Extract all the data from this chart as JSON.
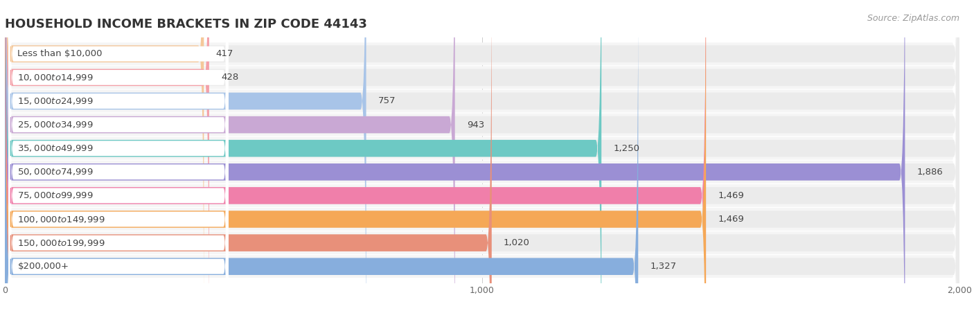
{
  "title": "HOUSEHOLD INCOME BRACKETS IN ZIP CODE 44143",
  "source": "Source: ZipAtlas.com",
  "categories": [
    "Less than $10,000",
    "$10,000 to $14,999",
    "$15,000 to $24,999",
    "$25,000 to $34,999",
    "$35,000 to $49,999",
    "$50,000 to $74,999",
    "$75,000 to $99,999",
    "$100,000 to $149,999",
    "$150,000 to $199,999",
    "$200,000+"
  ],
  "values": [
    417,
    428,
    757,
    943,
    1250,
    1886,
    1469,
    1469,
    1020,
    1327
  ],
  "bar_colors": [
    "#F5C89A",
    "#F4A0A8",
    "#A8C4E8",
    "#C9A8D4",
    "#6DC9C4",
    "#9B8FD4",
    "#F07FAA",
    "#F5A857",
    "#E8907A",
    "#87AEDD"
  ],
  "xlim": [
    0,
    2000
  ],
  "xticks": [
    0,
    1000,
    2000
  ],
  "background_color": "#ffffff",
  "bar_bg_color": "#ebebeb",
  "row_bg_color": "#f5f5f5",
  "title_fontsize": 13,
  "label_fontsize": 9.5,
  "value_fontsize": 9.5,
  "source_fontsize": 9
}
